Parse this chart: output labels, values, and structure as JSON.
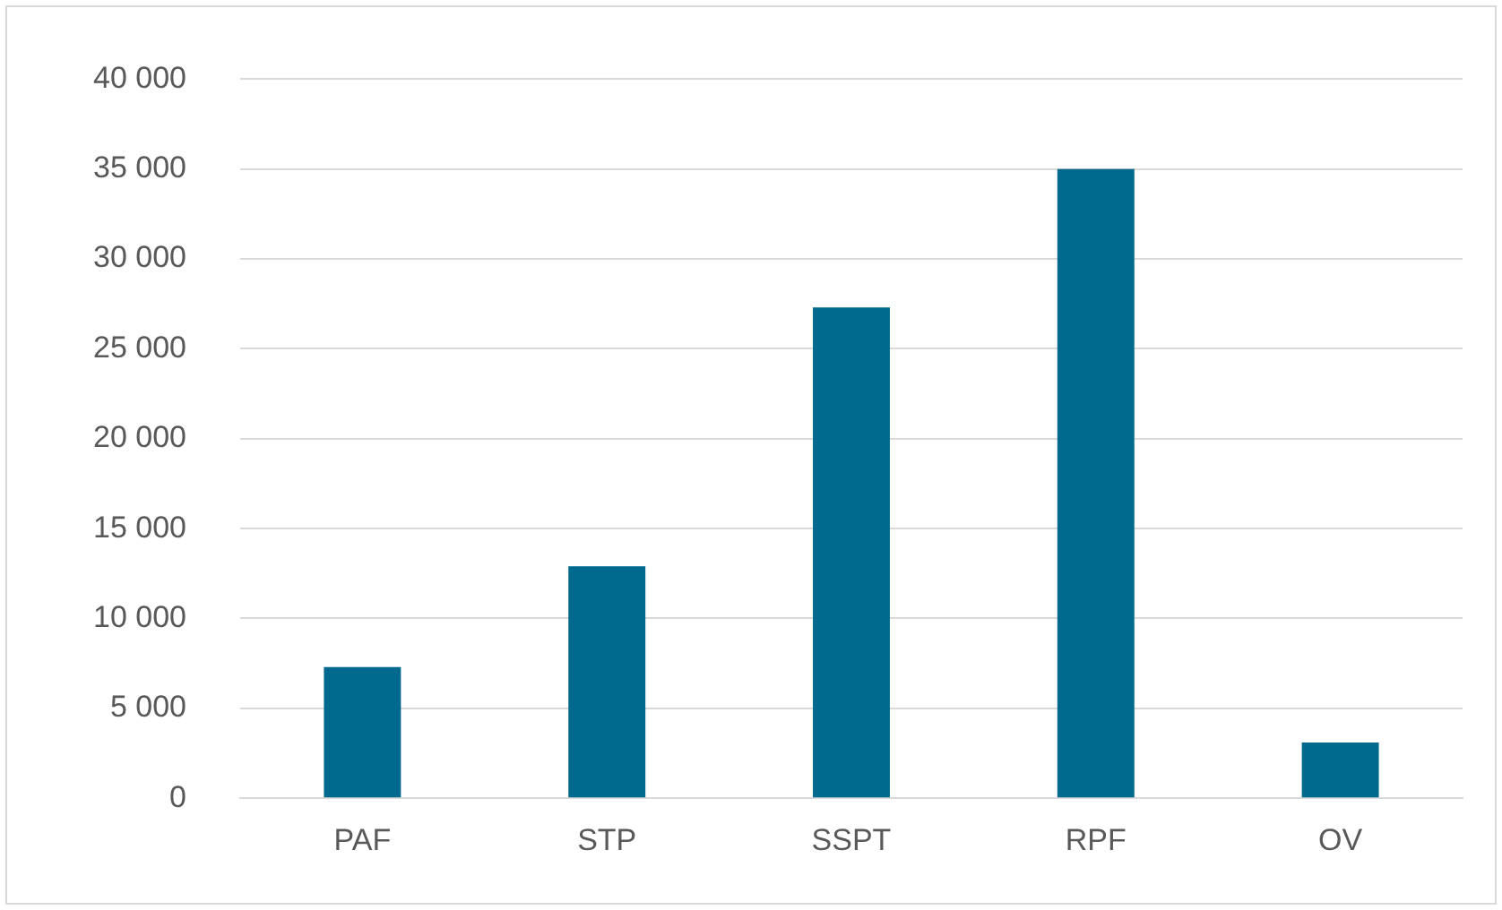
{
  "chart_data": {
    "type": "bar",
    "categories": [
      "PAF",
      "STP",
      "SSPT",
      "RPF",
      "OV"
    ],
    "values": [
      7300,
      12900,
      27300,
      35000,
      3100
    ],
    "color": "#006a8e",
    "ylim": [
      0,
      40000
    ],
    "yticks": [
      {
        "value": 0,
        "label": "0"
      },
      {
        "value": 5000,
        "label": "5 000"
      },
      {
        "value": 10000,
        "label": "10 000"
      },
      {
        "value": 15000,
        "label": "15 000"
      },
      {
        "value": 20000,
        "label": "20 000"
      },
      {
        "value": 25000,
        "label": "25 000"
      },
      {
        "value": 30000,
        "label": "30 000"
      },
      {
        "value": 35000,
        "label": "35 000"
      },
      {
        "value": 40000,
        "label": "40 000"
      }
    ],
    "grid": "y",
    "legend": false
  }
}
